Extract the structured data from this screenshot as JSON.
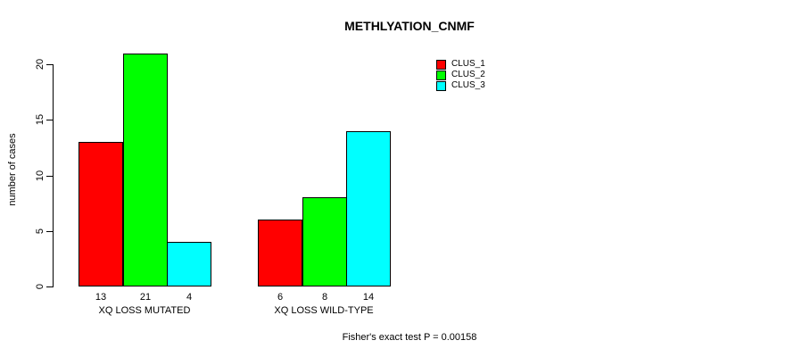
{
  "window": {
    "background": "#ffffff"
  },
  "chart_data": {
    "type": "bar",
    "title": "METHLYATION_CNMF",
    "ylabel": "number of cases",
    "xlabel": "",
    "categories": [
      "XQ LOSS MUTATED",
      "XQ LOSS WILD-TYPE"
    ],
    "series": [
      {
        "name": "CLUS_1",
        "color": "#ff0000",
        "values": [
          13,
          6
        ]
      },
      {
        "name": "CLUS_2",
        "color": "#00ff00",
        "values": [
          21,
          8
        ]
      },
      {
        "name": "CLUS_3",
        "color": "#00ffff",
        "values": [
          4,
          14
        ]
      }
    ],
    "yticks": [
      0,
      5,
      10,
      15,
      20
    ],
    "ylim": [
      0,
      21
    ],
    "grid": false,
    "legend_position": "top-right",
    "bar_outline_color": "#000000",
    "value_labels_shown": true,
    "annotation": "Fisher's exact test P = 0.00158"
  }
}
